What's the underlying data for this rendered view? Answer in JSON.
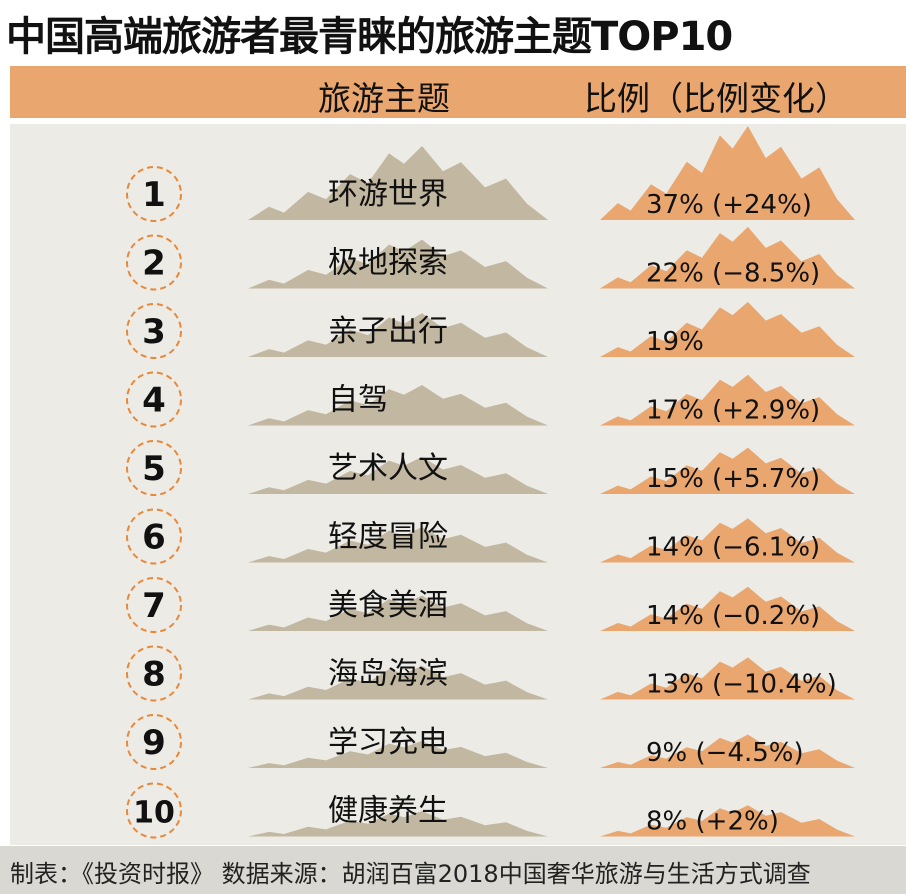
{
  "title": "中国高端旅游者最青睐的旅游主题TOP10",
  "header": {
    "theme_col": "旅游主题",
    "ratio_col": "比例（比例变化）"
  },
  "footer": "制表：《投资时报》 数据来源：胡润百富2018中国奢华旅游与生活方式调查",
  "colors": {
    "header_bg": "#e9a66f",
    "panel_bg": "#ecebe6",
    "left_mountain": "#c2b7a0",
    "right_mountain": "#e9a66f",
    "rank_circle": "#e8893a"
  },
  "chart_data": {
    "type": "table",
    "ranks": [
      "1",
      "2",
      "3",
      "4",
      "5",
      "6",
      "7",
      "8",
      "9",
      "10"
    ],
    "categories": [
      "环游世界",
      "极地探索",
      "亲子出行",
      "自驾",
      "艺术人文",
      "轻度冒险",
      "美食美酒",
      "海岛海滨",
      "学习充电",
      "健康养生"
    ],
    "values": [
      37,
      22,
      19,
      17,
      15,
      14,
      14,
      13,
      9,
      8
    ],
    "labels": [
      "37% (+24%)",
      "22% (−8.5%)",
      "19%",
      "17% (+2.9%)",
      "15% (+5.7%)",
      "14% (−6.1%)",
      "14% (−0.2%)",
      "13% (−10.4%)",
      "9% (−4.5%)",
      "8% (+2%)"
    ]
  }
}
